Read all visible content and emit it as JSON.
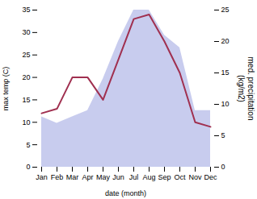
{
  "chart_data": {
    "type": "line",
    "categories": [
      "Jan",
      "Feb",
      "Mar",
      "Apr",
      "May",
      "Jun",
      "Jul",
      "Aug",
      "Sep",
      "Oct",
      "Nov",
      "Dec"
    ],
    "series": [
      {
        "type": "area",
        "axis": "y2",
        "color": "#c8ccee",
        "values": [
          8,
          7,
          8,
          9,
          14,
          20,
          25,
          25,
          21,
          19,
          9,
          9
        ]
      },
      {
        "type": "line",
        "color": "#a03050",
        "values": [
          12,
          13,
          20,
          20,
          15,
          24,
          33,
          34,
          28,
          21,
          10,
          9
        ]
      }
    ],
    "xlabel": "date (month)",
    "ylabel": "max temp (C)",
    "y2label": "med. precipitation\n(kg/m2)",
    "ylim": [
      0,
      35
    ],
    "yticks": [
      0,
      5,
      10,
      15,
      20,
      25,
      30,
      35
    ],
    "y2lim": [
      0,
      25
    ],
    "y2ticks": [
      0,
      5,
      10,
      15,
      20,
      25
    ],
    "grid": false
  }
}
